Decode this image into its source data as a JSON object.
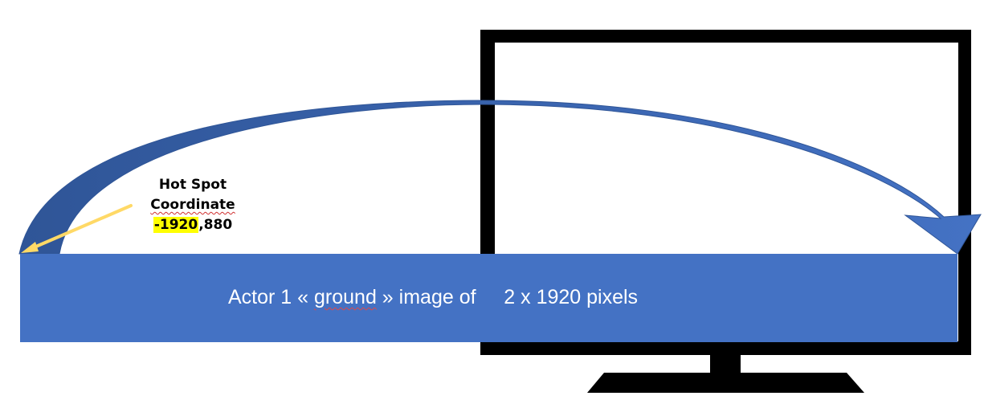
{
  "colors": {
    "ground_fill": "#4472c4",
    "arrow_fill_dark": "#2f5597",
    "arrow_fill_light": "#4472c4",
    "monitor": "#000000",
    "pointer_arrow": "#ffd966",
    "highlight": "#ffff00"
  },
  "icons": {
    "monitor": "monitor-icon",
    "curved_arrow": "curved-arrow-icon",
    "pointer_arrow": "arrow-icon"
  },
  "hotspot": {
    "line1": "Hot Spot",
    "line2": "Coordinate",
    "x_value": "-1920",
    "y_value": ",880"
  },
  "ground": {
    "prefix": "Actor 1 « ",
    "word": "ground",
    "suffix": " » image of     2 x 1920 pixels"
  }
}
